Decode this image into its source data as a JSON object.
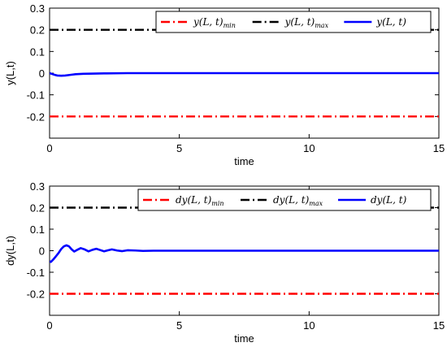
{
  "chart_data": [
    {
      "type": "line",
      "xlabel": "time",
      "ylabel": "y(L,t)",
      "xlim": [
        0,
        15
      ],
      "ylim": [
        -0.3,
        0.3
      ],
      "xticks": [
        "0",
        "5",
        "10",
        "15"
      ],
      "yticks": [
        "-0.2",
        "-0.1",
        "0",
        "0.1",
        "0.2",
        "0.3"
      ],
      "grid": false,
      "legend_position": "top-right",
      "series": [
        {
          "name": "y(L,t)min",
          "label_main": "y(L, t)",
          "label_sub": "min",
          "color": "#ff0000",
          "style": "dashdot",
          "x": [
            0,
            15
          ],
          "y": [
            -0.2,
            -0.2
          ]
        },
        {
          "name": "y(L,t)max",
          "label_main": "y(L, t)",
          "label_sub": "max",
          "color": "#000000",
          "style": "dashdot",
          "x": [
            0,
            15
          ],
          "y": [
            0.2,
            0.2
          ]
        },
        {
          "name": "y(L,t)",
          "label_main": "y(L, t)",
          "label_sub": "",
          "color": "#0000ff",
          "style": "solid",
          "x": [
            0,
            0.1,
            0.2,
            0.3,
            0.45,
            0.6,
            0.8,
            1.0,
            1.3,
            1.7,
            2.2,
            3.0,
            4.0,
            6.0,
            10.0,
            15.0
          ],
          "y": [
            0.0,
            -0.004,
            -0.008,
            -0.011,
            -0.012,
            -0.011,
            -0.008,
            -0.005,
            -0.003,
            -0.002,
            -0.001,
            0.0,
            0.0,
            0.0,
            0.0,
            0.0
          ]
        }
      ]
    },
    {
      "type": "line",
      "xlabel": "time",
      "ylabel": "dy(L,t)",
      "xlim": [
        0,
        15
      ],
      "ylim": [
        -0.3,
        0.3
      ],
      "xticks": [
        "0",
        "5",
        "10",
        "15"
      ],
      "yticks": [
        "-0.2",
        "-0.1",
        "0",
        "0.1",
        "0.2",
        "0.3"
      ],
      "grid": false,
      "legend_position": "top-right",
      "series": [
        {
          "name": "dy(L,t)min",
          "label_main": "dy(L, t)",
          "label_sub": "min",
          "color": "#ff0000",
          "style": "dashdot",
          "x": [
            0,
            15
          ],
          "y": [
            -0.2,
            -0.2
          ]
        },
        {
          "name": "dy(L,t)max",
          "label_main": "dy(L, t)",
          "label_sub": "max",
          "color": "#000000",
          "style": "dashdot",
          "x": [
            0,
            15
          ],
          "y": [
            0.2,
            0.2
          ]
        },
        {
          "name": "dy(L,t)",
          "label_main": "dy(L, t)",
          "label_sub": "",
          "color": "#0000ff",
          "style": "solid",
          "x": [
            0,
            0.05,
            0.15,
            0.25,
            0.35,
            0.45,
            0.55,
            0.65,
            0.75,
            0.85,
            0.95,
            1.05,
            1.2,
            1.35,
            1.5,
            1.65,
            1.8,
            1.95,
            2.1,
            2.25,
            2.4,
            2.6,
            2.8,
            3.0,
            3.3,
            3.6,
            4.0,
            5.0,
            7.0,
            10.0,
            15.0
          ],
          "y": [
            -0.05,
            -0.052,
            -0.04,
            -0.025,
            -0.01,
            0.008,
            0.02,
            0.025,
            0.02,
            0.006,
            -0.004,
            0.003,
            0.012,
            0.006,
            -0.003,
            0.004,
            0.009,
            0.003,
            -0.003,
            0.002,
            0.006,
            0.001,
            -0.002,
            0.002,
            0.001,
            -0.001,
            0.0,
            0.0,
            0.0,
            0.0,
            0.0
          ]
        }
      ]
    }
  ]
}
